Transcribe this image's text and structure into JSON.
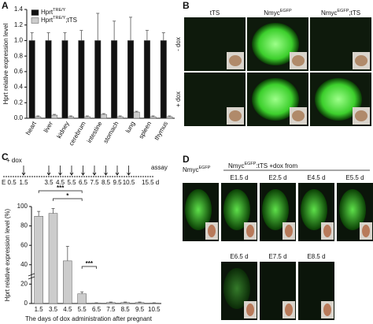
{
  "panel_labels": [
    "A",
    "B",
    "C",
    "D"
  ],
  "chart_data": [
    {
      "type": "bar",
      "y_label": "Hprt relative expression level",
      "categories": [
        "heart",
        "liver",
        "kidney",
        "cerebrum",
        "intestine",
        "stomach",
        "lung",
        "spleen",
        "thymus"
      ],
      "series": [
        {
          "name": "Hprt",
          "name_superscript": "TRE/Y",
          "color": "#111111",
          "values": [
            1.0,
            1.0,
            1.0,
            1.0,
            1.0,
            1.0,
            1.0,
            1.0,
            1.0
          ],
          "errors": [
            0.1,
            0.1,
            0.1,
            0.13,
            0.35,
            0.25,
            0.3,
            0.13,
            0.1
          ]
        },
        {
          "name": "Hprt",
          "name_superscript": "TRE/Y",
          "name_suffix": ";tTS",
          "color": "#cccccc",
          "values": [
            0.02,
            0.04,
            0.02,
            0.02,
            0.05,
            0.02,
            0.08,
            0.02,
            0.02
          ],
          "errors": [
            0.01,
            0.01,
            0.01,
            0.01,
            0.01,
            0.01,
            0.01,
            0.01,
            0.01
          ]
        }
      ],
      "ylim": [
        0,
        1.4
      ],
      "yticks": [
        {
          "value": 0,
          "label": "0.0"
        },
        {
          "value": 0.2,
          "label": "0.2"
        },
        {
          "value": 0.4,
          "label": "0.4"
        },
        {
          "value": 0.6,
          "label": "0.6"
        },
        {
          "value": 0.8,
          "label": "0.8"
        },
        {
          "value": 1.0,
          "label": "1.0"
        },
        {
          "value": 1.2,
          "label": "1.2"
        },
        {
          "value": 1.4,
          "label": "1.4"
        }
      ]
    },
    {
      "type": "bar",
      "y_label": "Hprt relative expression level (%)",
      "x_label": "The days of dox administration after pregnant",
      "categories": [
        "1.5",
        "3.5",
        "4.5",
        "5.5",
        "6.5",
        "7.5",
        "8.5",
        "9.5",
        "10.5"
      ],
      "series": [
        {
          "color": "#cccccc",
          "values": [
            90,
            93,
            44,
            10,
            0.5,
            1,
            1,
            1,
            0.5
          ],
          "errors": [
            5,
            5,
            15,
            2,
            0.3,
            0.5,
            0.5,
            0.5,
            0.3
          ]
        }
      ],
      "annotations": [
        "***",
        "*",
        "***"
      ],
      "ylim": [
        0,
        100
      ],
      "yticks": [
        0,
        20,
        40,
        60,
        80,
        100
      ]
    }
  ],
  "timeline": {
    "dox_label": "+ dox",
    "assay_label": "assay",
    "start_label": "E 0.5",
    "labels": [
      "1.5",
      "3.5",
      "4.5",
      "5.5",
      "6.5",
      "7.5",
      "8.5",
      "9.5",
      "10.5"
    ],
    "end_label": "15.5 d"
  },
  "panel_b": {
    "columns": [
      {
        "text": "tTS"
      },
      {
        "text": "Nmyc",
        "sup": "EGFP"
      },
      {
        "text": "Nmyc",
        "sup": "EGFP",
        "suffix": ";tTS"
      }
    ],
    "rows": [
      "- dox",
      "+ dox"
    ]
  },
  "panel_d": {
    "control": {
      "text": "Nmyc",
      "sup": "EGFP"
    },
    "group": {
      "text": "Nmyc",
      "sup": "EGFP",
      "suffix": ":tTS  +dox from"
    },
    "stages": [
      "E1.5 d",
      "E2.5 d",
      "E4.5 d",
      "E5.5 d",
      "E6.5 d",
      "E7.5 d",
      "E8.5 d"
    ]
  }
}
